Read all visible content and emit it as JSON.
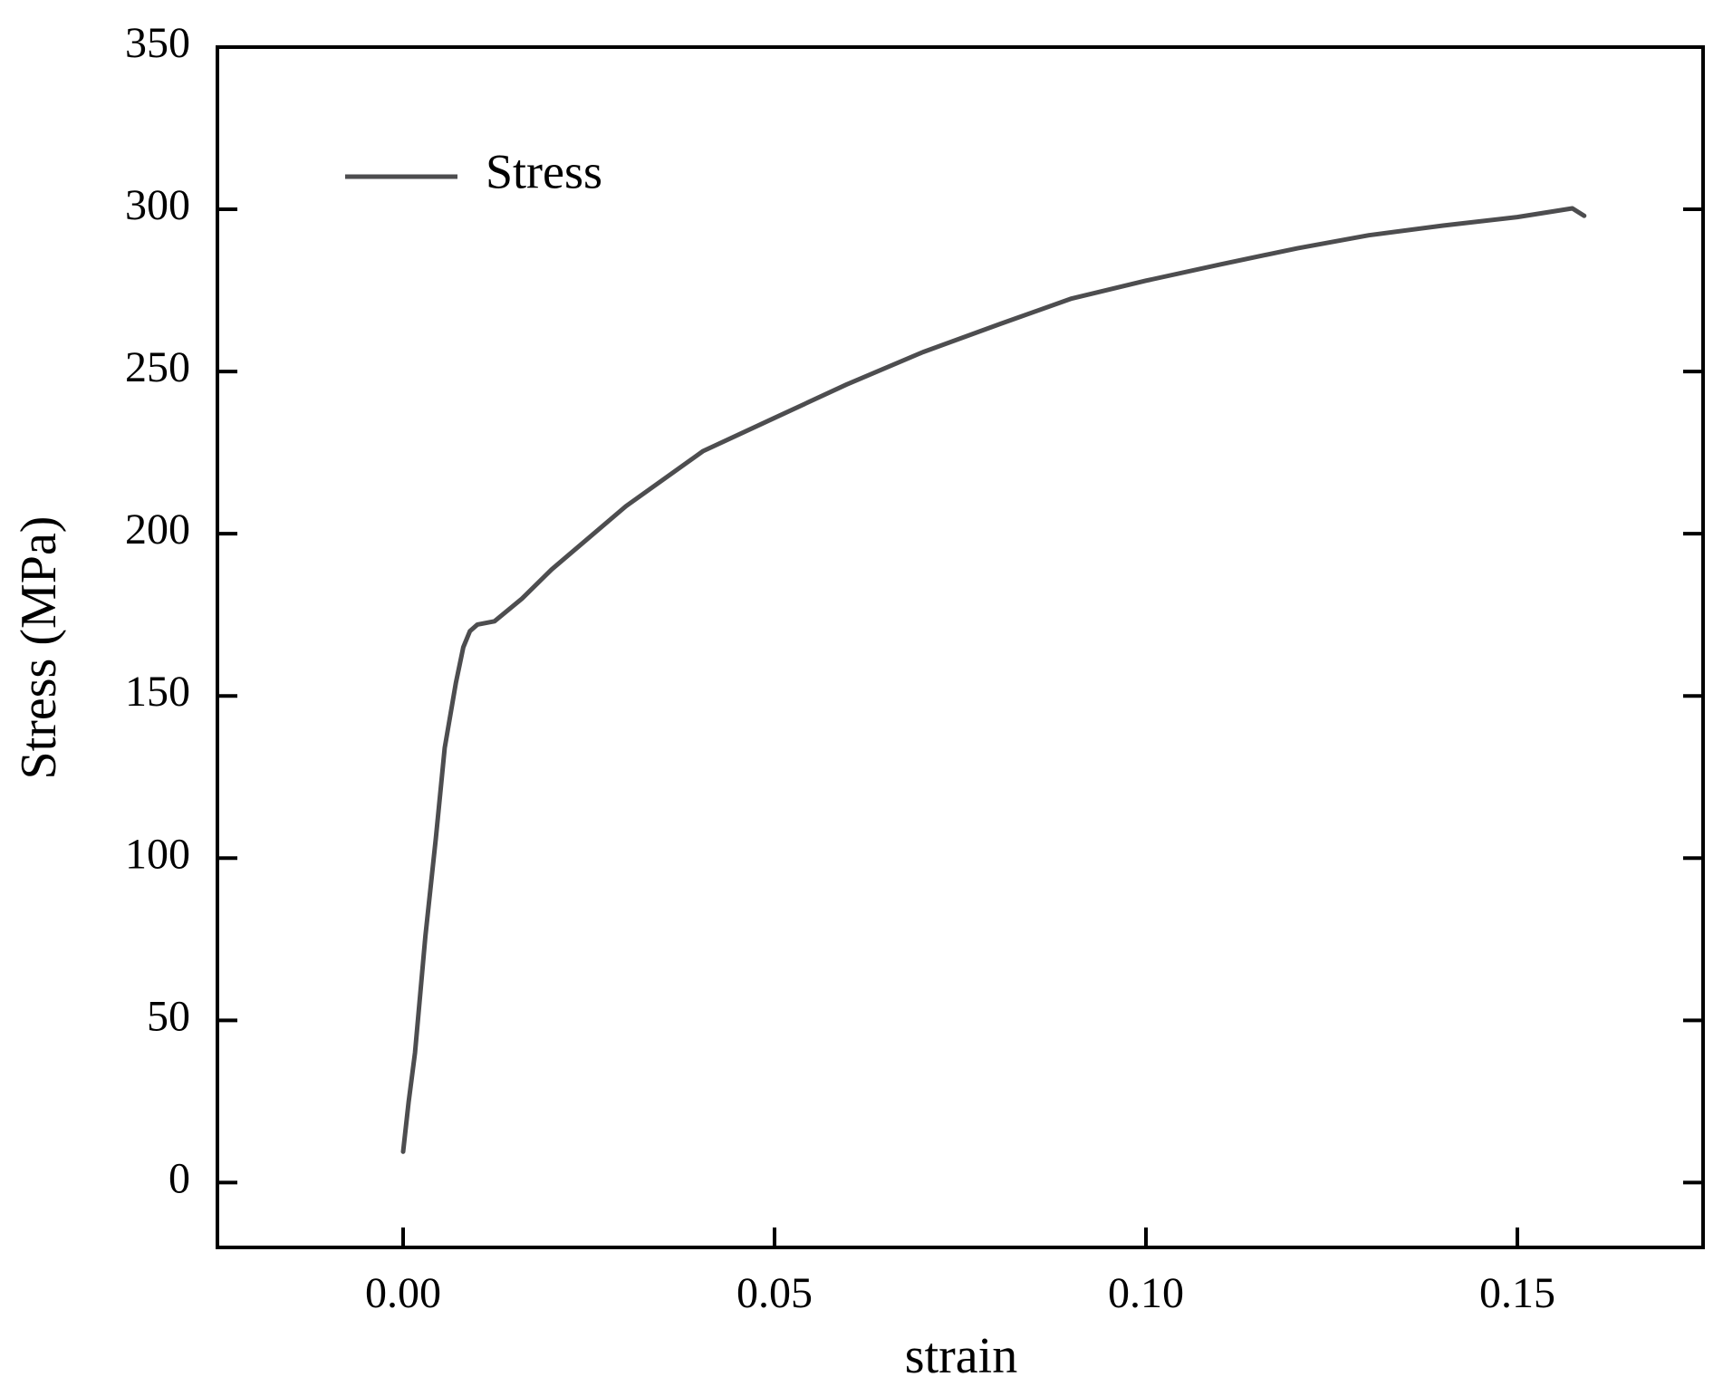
{
  "chart_data": {
    "type": "line",
    "x_label": "strain",
    "y_label": "Stress (MPa)",
    "x": [
      0.0,
      0.00074,
      0.0016,
      0.003,
      0.0044,
      0.0056,
      0.0071,
      0.0081,
      0.009,
      0.01,
      0.0123,
      0.016,
      0.02,
      0.03,
      0.0404,
      0.05,
      0.0597,
      0.07,
      0.0804,
      0.09,
      0.1,
      0.11,
      0.1204,
      0.13,
      0.14,
      0.15,
      0.1574,
      0.159
    ],
    "series": [
      {
        "name": "Stress",
        "color": "#4d4d4f",
        "values": [
          9.5,
          24.8,
          40,
          76,
          106,
          134,
          154,
          165,
          170,
          172,
          173,
          180,
          189,
          208.5,
          225.5,
          235.7,
          246,
          256,
          264.7,
          272.5,
          278,
          283,
          288,
          292,
          295,
          297.6,
          300.3,
          298
        ]
      }
    ],
    "xlim": [
      -0.025,
      0.175
    ],
    "xticks": [
      {
        "value": 0,
        "label": "0.00"
      },
      0.05,
      {
        "value": 0.1,
        "label": "0.10"
      },
      0.15
    ],
    "ylim": [
      -20,
      350
    ],
    "yticks": [
      0,
      50,
      100,
      150,
      200,
      250,
      300,
      350
    ],
    "legend": "upper left"
  }
}
